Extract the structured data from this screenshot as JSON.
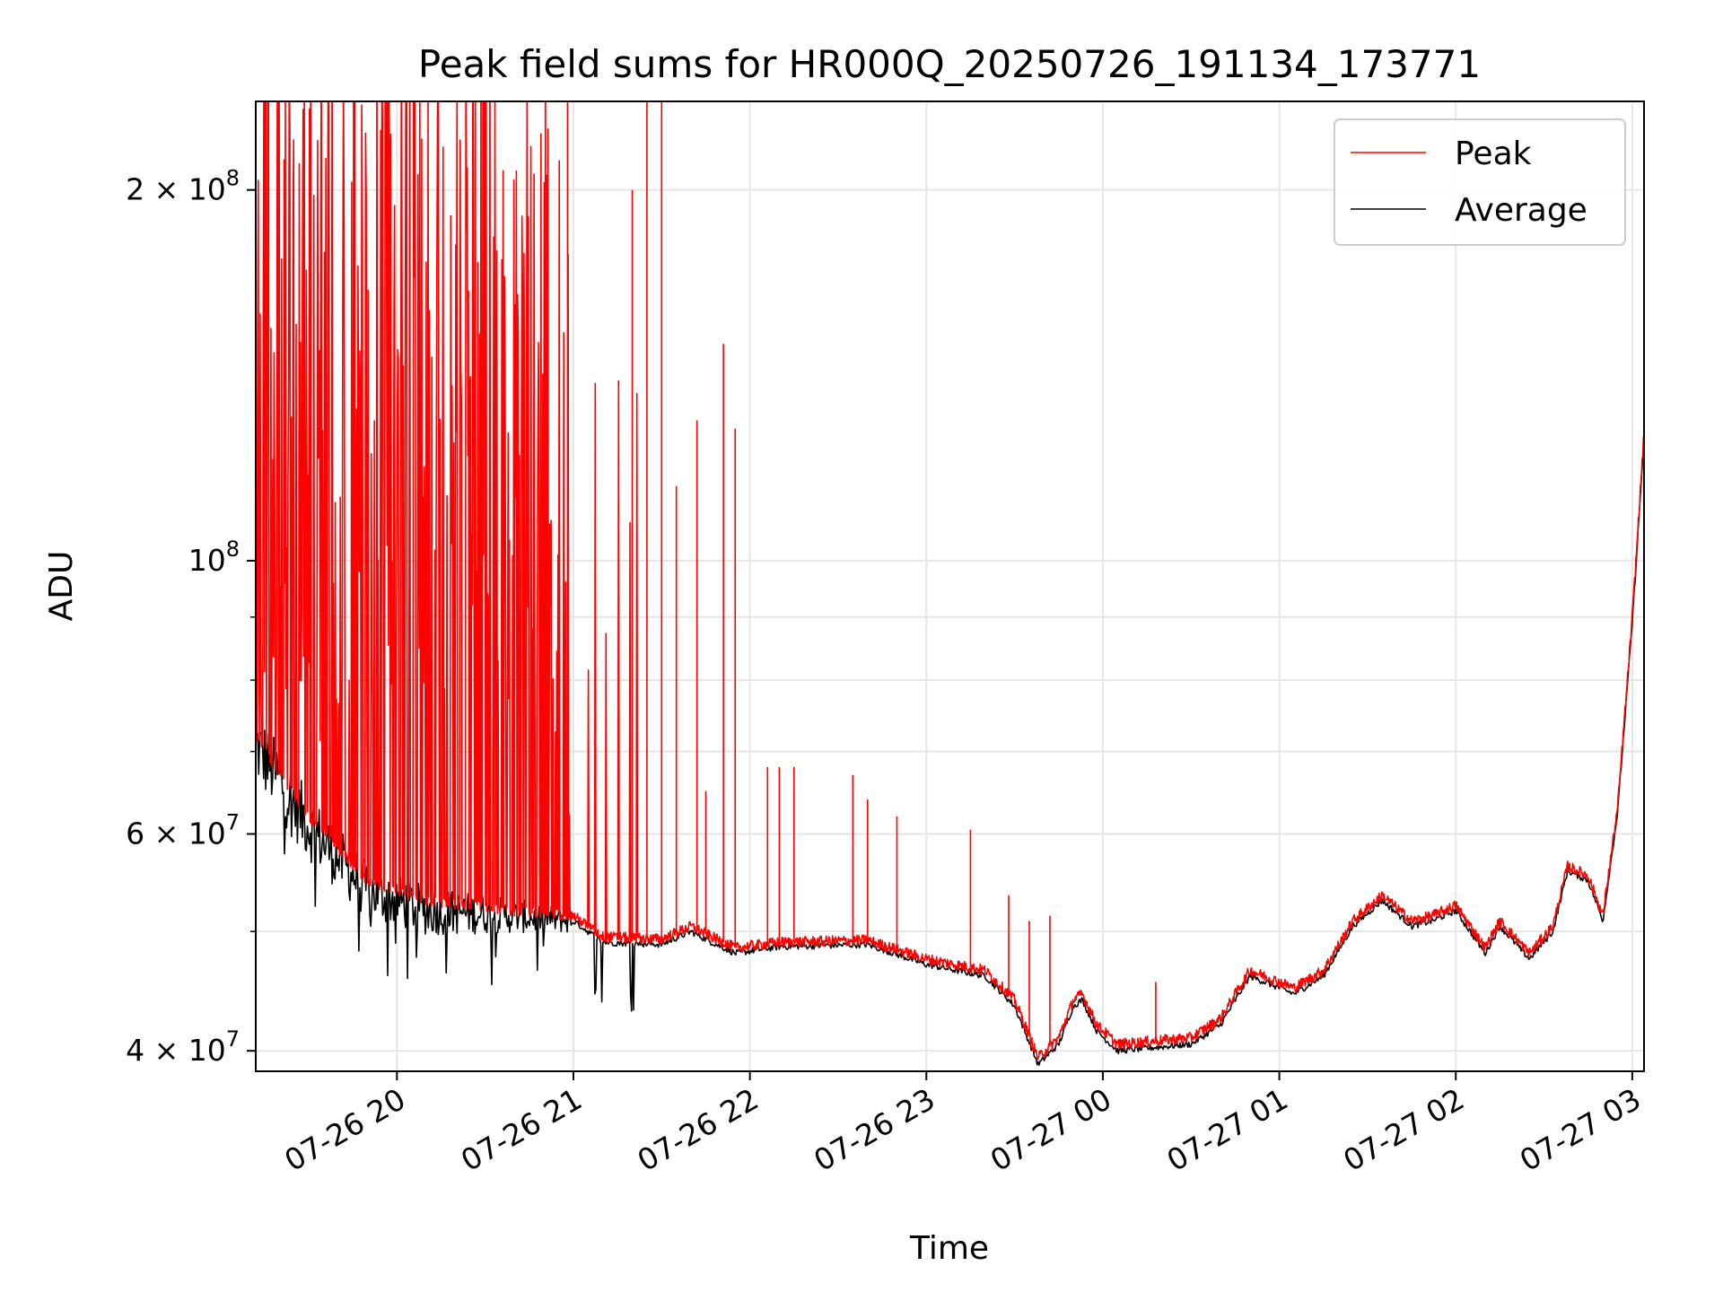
{
  "chart_data": {
    "type": "line",
    "title": "Peak field sums for HR000Q_20250726_191134_173771",
    "xlabel": "Time",
    "ylabel": "ADU",
    "y_scale": "log",
    "ylim": [
      38500000,
      236000000
    ],
    "xlim": [
      "2025-07-26 19:12",
      "2025-07-27 03:04"
    ],
    "grid": true,
    "legend_position": "upper right",
    "x_ticks": [
      {
        "t": "2025-07-26 20:00",
        "label": "07-26 20"
      },
      {
        "t": "2025-07-26 21:00",
        "label": "07-26 21"
      },
      {
        "t": "2025-07-26 22:00",
        "label": "07-26 22"
      },
      {
        "t": "2025-07-26 23:00",
        "label": "07-26 23"
      },
      {
        "t": "2025-07-27 00:00",
        "label": "07-27 00"
      },
      {
        "t": "2025-07-27 01:00",
        "label": "07-27 01"
      },
      {
        "t": "2025-07-27 02:00",
        "label": "07-27 02"
      },
      {
        "t": "2025-07-27 03:00",
        "label": "07-27 03"
      }
    ],
    "y_ticks": [
      {
        "v": 40000000,
        "base": "4 × 10",
        "exp": "7"
      },
      {
        "v": 60000000,
        "base": "6 × 10",
        "exp": "7"
      },
      {
        "v": 100000000,
        "base": "10",
        "exp": "8"
      },
      {
        "v": 200000000,
        "base": "2 × 10",
        "exp": "8"
      }
    ],
    "y_minor_ticks": [
      50000000,
      70000000,
      80000000,
      90000000
    ],
    "series": [
      {
        "name": "Peak",
        "color": "#ff0000",
        "baseline_points": [
          [
            "2025-07-26 19:12",
            72000000
          ],
          [
            "2025-07-26 19:30",
            62000000
          ],
          [
            "2025-07-26 19:50",
            55000000
          ],
          [
            "2025-07-26 20:10",
            53000000
          ],
          [
            "2025-07-26 20:40",
            52000000
          ],
          [
            "2025-07-26 21:00",
            51500000
          ],
          [
            "2025-07-26 21:10",
            49500000
          ],
          [
            "2025-07-26 21:30",
            49300000
          ],
          [
            "2025-07-26 21:40",
            50500000
          ],
          [
            "2025-07-26 21:47",
            49500000
          ],
          [
            "2025-07-26 21:55",
            48500000
          ],
          [
            "2025-07-26 22:10",
            49000000
          ],
          [
            "2025-07-26 22:40",
            49200000
          ],
          [
            "2025-07-26 23:00",
            47500000
          ],
          [
            "2025-07-26 23:20",
            46500000
          ],
          [
            "2025-07-26 23:30",
            44000000
          ],
          [
            "2025-07-26 23:38",
            39500000
          ],
          [
            "2025-07-26 23:45",
            41000000
          ],
          [
            "2025-07-26 23:50",
            44000000
          ],
          [
            "2025-07-26 23:53",
            44500000
          ],
          [
            "2025-07-26 23:58",
            42000000
          ],
          [
            "2025-07-27 00:05",
            40500000
          ],
          [
            "2025-07-27 00:20",
            40800000
          ],
          [
            "2025-07-27 00:30",
            41000000
          ],
          [
            "2025-07-27 00:40",
            42500000
          ],
          [
            "2025-07-27 00:50",
            46500000
          ],
          [
            "2025-07-27 01:00",
            45500000
          ],
          [
            "2025-07-27 01:05",
            45000000
          ],
          [
            "2025-07-27 01:15",
            46500000
          ],
          [
            "2025-07-27 01:25",
            51000000
          ],
          [
            "2025-07-27 01:35",
            53500000
          ],
          [
            "2025-07-27 01:45",
            51000000
          ],
          [
            "2025-07-27 01:52",
            51500000
          ],
          [
            "2025-07-27 02:00",
            52500000
          ],
          [
            "2025-07-27 02:10",
            48500000
          ],
          [
            "2025-07-27 02:15",
            51000000
          ],
          [
            "2025-07-27 02:25",
            48000000
          ],
          [
            "2025-07-27 02:33",
            50500000
          ],
          [
            "2025-07-27 02:38",
            56500000
          ],
          [
            "2025-07-27 02:45",
            55500000
          ],
          [
            "2025-07-27 02:50",
            51500000
          ],
          [
            "2025-07-27 02:55",
            63000000
          ],
          [
            "2025-07-27 03:00",
            90000000
          ],
          [
            "2025-07-27 03:04",
            127000000
          ]
        ]
      },
      {
        "name": "Average",
        "color": "#000000",
        "baseline_points": [
          [
            "2025-07-26 19:12",
            71000000
          ],
          [
            "2025-07-26 19:30",
            61000000
          ],
          [
            "2025-07-26 19:50",
            54000000
          ],
          [
            "2025-07-26 20:10",
            52000000
          ],
          [
            "2025-07-26 20:40",
            51500000
          ],
          [
            "2025-07-26 21:00",
            51000000
          ],
          [
            "2025-07-26 21:10",
            49000000
          ],
          [
            "2025-07-26 21:30",
            48800000
          ],
          [
            "2025-07-26 21:40",
            50000000
          ],
          [
            "2025-07-26 21:47",
            49000000
          ],
          [
            "2025-07-26 21:55",
            48000000
          ],
          [
            "2025-07-26 22:10",
            48600000
          ],
          [
            "2025-07-26 22:40",
            48800000
          ],
          [
            "2025-07-26 23:00",
            47000000
          ],
          [
            "2025-07-26 23:20",
            46000000
          ],
          [
            "2025-07-26 23:30",
            43500000
          ],
          [
            "2025-07-26 23:38",
            39000000
          ],
          [
            "2025-07-26 23:45",
            40500000
          ],
          [
            "2025-07-26 23:50",
            43500000
          ],
          [
            "2025-07-26 23:53",
            44000000
          ],
          [
            "2025-07-26 23:58",
            41500000
          ],
          [
            "2025-07-27 00:05",
            40000000
          ],
          [
            "2025-07-27 00:20",
            40300000
          ],
          [
            "2025-07-27 00:30",
            40500000
          ],
          [
            "2025-07-27 00:40",
            42000000
          ],
          [
            "2025-07-27 00:50",
            46000000
          ],
          [
            "2025-07-27 01:00",
            45000000
          ],
          [
            "2025-07-27 01:05",
            44500000
          ],
          [
            "2025-07-27 01:15",
            46000000
          ],
          [
            "2025-07-27 01:25",
            50500000
          ],
          [
            "2025-07-27 01:35",
            53000000
          ],
          [
            "2025-07-27 01:45",
            50500000
          ],
          [
            "2025-07-27 01:52",
            51000000
          ],
          [
            "2025-07-27 02:00",
            52000000
          ],
          [
            "2025-07-27 02:10",
            48000000
          ],
          [
            "2025-07-27 02:15",
            50500000
          ],
          [
            "2025-07-27 02:25",
            47500000
          ],
          [
            "2025-07-27 02:33",
            50000000
          ],
          [
            "2025-07-27 02:38",
            56000000
          ],
          [
            "2025-07-27 02:45",
            55000000
          ],
          [
            "2025-07-27 02:50",
            51000000
          ],
          [
            "2025-07-27 02:55",
            62500000
          ],
          [
            "2025-07-27 03:00",
            89000000
          ],
          [
            "2025-07-27 03:04",
            126000000
          ]
        ]
      }
    ],
    "peak_spikes": [
      [
        "2025-07-26 20:58",
        236000000
      ],
      [
        "2025-07-26 21:20",
        200000000
      ],
      [
        "2025-07-26 21:25",
        236000000
      ],
      [
        "2025-07-26 21:30",
        236000000
      ],
      [
        "2025-07-26 21:35",
        115000000
      ],
      [
        "2025-07-26 21:42",
        130000000
      ],
      [
        "2025-07-26 21:45",
        65000000
      ],
      [
        "2025-07-26 21:51",
        150000000
      ],
      [
        "2025-07-26 21:55",
        128000000
      ],
      [
        "2025-07-26 22:06",
        68000000
      ],
      [
        "2025-07-26 22:10",
        68000000
      ],
      [
        "2025-07-26 22:15",
        68000000
      ],
      [
        "2025-07-26 22:35",
        67000000
      ],
      [
        "2025-07-26 22:40",
        64000000
      ],
      [
        "2025-07-26 22:50",
        62000000
      ],
      [
        "2025-07-26 23:15",
        60500000
      ],
      [
        "2025-07-26 23:28",
        53500000
      ],
      [
        "2025-07-26 23:35",
        51000000
      ],
      [
        "2025-07-26 23:42",
        51500000
      ],
      [
        "2025-07-27 00:18",
        45500000
      ]
    ]
  },
  "legend": [
    {
      "label": "Peak",
      "color": "#ff0000"
    },
    {
      "label": "Average",
      "color": "#000000"
    }
  ]
}
